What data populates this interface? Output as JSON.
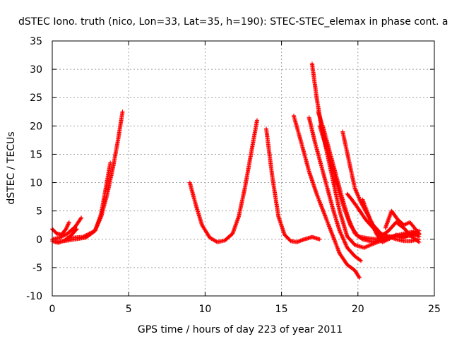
{
  "chart_data": {
    "type": "scatter",
    "title": "dSTEC Iono. truth (nico, Lon=33, Lat=35, h=190): STEC-STEC_elemax in phase cont. a",
    "xlabel": "GPS time / hours of day 223 of year 2011",
    "ylabel": "dSTEC  / TECUs",
    "xlim": [
      0,
      25
    ],
    "ylim": [
      -10,
      35
    ],
    "xticks": [
      "0",
      "5",
      "10",
      "15",
      "20",
      "25"
    ],
    "yticks": [
      "-10",
      "-5",
      "0",
      "5",
      "10",
      "15",
      "20",
      "25",
      "30",
      "35"
    ],
    "grid": true,
    "marker": "+",
    "color": "#ff0000",
    "series": [
      {
        "x": [
          0.0,
          0.3,
          0.6,
          0.9,
          1.1
        ],
        "y": [
          1.8,
          1.0,
          0.8,
          1.8,
          3.0
        ]
      },
      {
        "x": [
          0.0,
          0.4,
          0.8,
          1.2,
          1.6
        ],
        "y": [
          -0.3,
          -0.6,
          -0.2,
          0.6,
          1.8
        ]
      },
      {
        "x": [
          0.0,
          0.5,
          1.0,
          1.5,
          1.9
        ],
        "y": [
          0.0,
          0.3,
          1.0,
          2.2,
          3.8
        ]
      },
      {
        "x": [
          0.2,
          0.8,
          1.5,
          2.2,
          2.8,
          3.2,
          3.6,
          4.0,
          4.3,
          4.6
        ],
        "y": [
          -0.5,
          -0.3,
          0.0,
          0.3,
          1.5,
          4.0,
          8.0,
          13.0,
          17.5,
          22.5
        ]
      },
      {
        "x": [
          1.0,
          2.0,
          2.8,
          3.2,
          3.5,
          3.8
        ],
        "y": [
          0.2,
          0.4,
          1.5,
          4.5,
          9.0,
          13.5
        ]
      },
      {
        "x": [
          9.0,
          9.4,
          9.8,
          10.3,
          10.8,
          11.3,
          11.8,
          12.2,
          12.6,
          13.0,
          13.4
        ],
        "y": [
          10.0,
          6.0,
          2.5,
          0.3,
          -0.5,
          -0.2,
          1.0,
          4.0,
          9.0,
          15.0,
          21.0
        ]
      },
      {
        "x": [
          14.0,
          14.4,
          14.8,
          15.2,
          15.6,
          16.0,
          16.5,
          17.0,
          17.5
        ],
        "y": [
          19.5,
          11.0,
          4.0,
          0.8,
          -0.3,
          -0.5,
          0.0,
          0.4,
          0.0
        ]
      },
      {
        "x": [
          15.8,
          16.3,
          16.8,
          17.3,
          17.8,
          18.3,
          18.8,
          19.3,
          19.8,
          20.1
        ],
        "y": [
          21.8,
          17.0,
          12.0,
          8.0,
          4.5,
          1.0,
          -2.5,
          -4.5,
          -5.5,
          -6.8
        ]
      },
      {
        "x": [
          16.8,
          17.2,
          17.6,
          18.0,
          18.4,
          18.8,
          19.3,
          19.8,
          20.2
        ],
        "y": [
          21.5,
          17.0,
          13.0,
          9.0,
          5.0,
          1.5,
          -1.5,
          -3.0,
          -3.8
        ]
      },
      {
        "x": [
          17.0,
          17.3,
          17.6,
          18.0,
          18.4,
          18.8,
          19.3,
          19.8,
          20.4,
          21.0,
          22.0,
          23.0,
          24.0
        ],
        "y": [
          31.0,
          25.0,
          20.0,
          15.0,
          10.0,
          5.0,
          0.5,
          -1.0,
          -1.5,
          -0.8,
          0.2,
          0.8,
          1.0
        ]
      },
      {
        "x": [
          17.4,
          17.8,
          18.2,
          18.6,
          19.0,
          19.4,
          19.8,
          20.3,
          21.0,
          22.0,
          23.0,
          24.0
        ],
        "y": [
          22.5,
          19.0,
          15.0,
          11.0,
          7.0,
          3.5,
          1.0,
          0.0,
          -0.5,
          0.3,
          1.0,
          1.5
        ]
      },
      {
        "x": [
          17.5,
          17.9,
          18.3,
          18.7,
          19.1,
          19.5,
          20.0,
          20.6,
          21.2,
          22.0,
          23.0,
          24.0
        ],
        "y": [
          20.0,
          16.5,
          13.0,
          9.0,
          5.5,
          2.5,
          0.5,
          0.2,
          0.0,
          0.5,
          0.5,
          0.8
        ]
      },
      {
        "x": [
          19.0,
          19.4,
          19.8,
          20.2,
          20.6,
          21.0,
          21.5,
          22.0,
          22.5,
          23.0,
          23.5,
          24.0
        ],
        "y": [
          19.0,
          14.0,
          9.0,
          6.5,
          4.5,
          2.5,
          1.0,
          0.5,
          0.0,
          -0.3,
          -0.3,
          0.0
        ]
      },
      {
        "x": [
          19.3,
          19.6,
          20.0,
          20.5,
          21.0,
          21.5,
          22.0,
          22.5,
          23.0,
          23.5,
          24.0
        ],
        "y": [
          8.0,
          7.0,
          5.5,
          3.5,
          2.0,
          0.5,
          1.5,
          3.0,
          2.0,
          0.5,
          -0.5
        ]
      },
      {
        "x": [
          20.3,
          20.8,
          21.2,
          21.6,
          22.0,
          22.5,
          23.0,
          23.6,
          24.0
        ],
        "y": [
          7.0,
          3.5,
          1.0,
          -0.5,
          0.0,
          0.8,
          0.3,
          1.2,
          0.5
        ]
      },
      {
        "x": [
          21.8,
          22.2,
          22.6,
          23.0,
          23.4,
          24.0
        ],
        "y": [
          2.0,
          5.0,
          3.5,
          2.5,
          3.0,
          1.0
        ]
      }
    ]
  }
}
